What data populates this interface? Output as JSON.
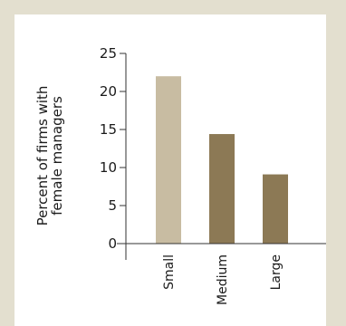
{
  "chart_data": {
    "type": "bar",
    "categories": [
      "Small",
      "Medium",
      "Large"
    ],
    "values": [
      22,
      14.4,
      9.1
    ],
    "colors": [
      "#c8bca2",
      "#8c7955",
      "#8c7955"
    ],
    "ylabel_lines": [
      "Percent of firms with",
      "female managers"
    ],
    "ylim": [
      0,
      25
    ],
    "yticks": [
      0,
      5,
      10,
      15,
      20,
      25
    ],
    "ytick_labels": [
      "0",
      "5",
      "10",
      "15",
      "20",
      "25"
    ],
    "grid": false,
    "background": "#e3dfcf"
  }
}
